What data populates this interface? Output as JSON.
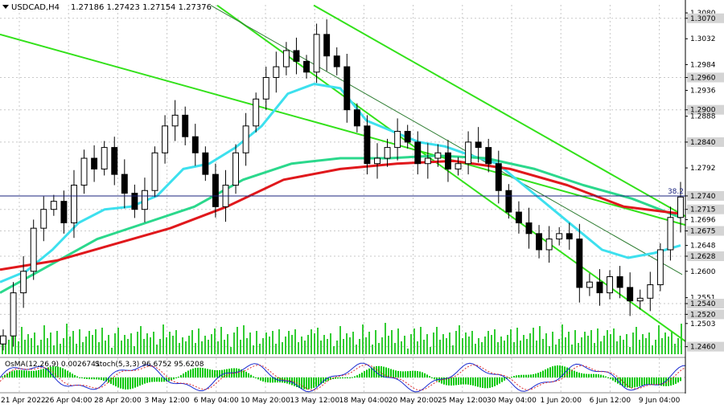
{
  "header": {
    "symbol": "USDCAD,H4",
    "ohlc": "1.27186 1.27423 1.27154 1.27376"
  },
  "indicator_header": {
    "osma": "OsMA(12,26,9) 0.0026741",
    "stoch": "Stoch(5,3,3) 96.6752 95.6208"
  },
  "colors": {
    "background": "#ffffff",
    "candle": "#000000",
    "grid": "#c8c8c8",
    "channel": "#33e11a",
    "ema_fast": "#3de0ee",
    "ema_mid": "#2bd88c",
    "ema_slow": "#e0181c",
    "trendline": "#2e7d32",
    "level_line": "#1a237e",
    "volume": "#33cc33",
    "osma": "#00c800",
    "stoch_main": "#1a2bd0",
    "stoch_signal": "#e03030",
    "price_label_bg": "#d4d4d4"
  },
  "chart_data": {
    "type": "candlestick",
    "symbol": "USDCAD",
    "timeframe": "H4",
    "ylim": [
      1.2446,
      1.3095
    ],
    "x_tick_labels": [
      "21 Apr 2022",
      "26 Apr 04:00",
      "28 Apr 20:00",
      "3 May 12:00",
      "6 May 04:00",
      "10 May 20:00",
      "13 May 12:00",
      "18 May 04:00",
      "20 May 20:00",
      "25 May 12:00",
      "30 May 04:00",
      "1 Jun 20:00",
      "6 Jun 12:00",
      "9 Jun 04:00"
    ],
    "y_tick_labels": [
      "1.3080",
      "1.3070",
      "1.3032",
      "1.2984",
      "1.2960",
      "1.2936",
      "1.2900",
      "1.2888",
      "1.2840",
      "1.2792",
      "1.2740",
      "1.2715",
      "1.2696",
      "1.2675",
      "1.2648",
      "1.2628",
      "1.2600",
      "1.2551",
      "1.2540",
      "1.2520",
      "1.2503",
      "1.2460"
    ],
    "highlighted_levels": [
      1.307,
      1.296,
      1.29,
      1.284,
      1.274,
      1.2715,
      1.2675,
      1.2628,
      1.254,
      1.252,
      1.246
    ],
    "horizontal_line": 1.274,
    "horizontal_line_label": "38.2",
    "closes": [
      1.248,
      1.256,
      1.26,
      1.268,
      1.2715,
      1.273,
      1.269,
      1.276,
      1.281,
      1.279,
      1.283,
      1.278,
      1.2745,
      1.2715,
      1.275,
      1.282,
      1.287,
      1.289,
      1.285,
      1.282,
      1.278,
      1.272,
      1.276,
      1.282,
      1.287,
      1.292,
      1.296,
      1.298,
      1.301,
      1.299,
      1.297,
      1.304,
      1.3,
      1.298,
      1.29,
      1.287,
      1.28,
      1.281,
      1.283,
      1.286,
      1.284,
      1.28,
      1.281,
      1.282,
      1.279,
      1.28,
      1.284,
      1.283,
      1.28,
      1.275,
      1.271,
      1.269,
      1.267,
      1.264,
      1.266,
      1.267,
      1.266,
      1.257,
      1.258,
      1.256,
      1.259,
      1.257,
      1.2545,
      1.255,
      1.2575,
      1.264,
      1.27,
      1.2738
    ],
    "series": [
      {
        "name": "",
        "color": "#3de0ee",
        "values": [
          1.258,
          1.26,
          1.264,
          1.269,
          1.2715,
          1.272,
          1.274,
          1.279,
          1.28,
          1.283,
          1.287,
          1.293,
          1.2948,
          1.294,
          1.288,
          1.286,
          1.284,
          1.2832,
          1.2815,
          1.28,
          1.276,
          1.272,
          1.268,
          1.264,
          1.2625,
          1.2634,
          1.2648
        ]
      },
      {
        "name": "",
        "color": "#2bd88c",
        "values": [
          1.256,
          1.261,
          1.266,
          1.269,
          1.272,
          1.277,
          1.28,
          1.281,
          1.281,
          1.2815,
          1.281,
          1.279,
          1.276,
          1.2735,
          1.27
        ]
      },
      {
        "name": "",
        "color": "#e0181c",
        "values": [
          1.2603,
          1.262,
          1.265,
          1.268,
          1.272,
          1.277,
          1.279,
          1.28,
          1.2805,
          1.279,
          1.276,
          1.272,
          1.2707
        ]
      }
    ]
  }
}
